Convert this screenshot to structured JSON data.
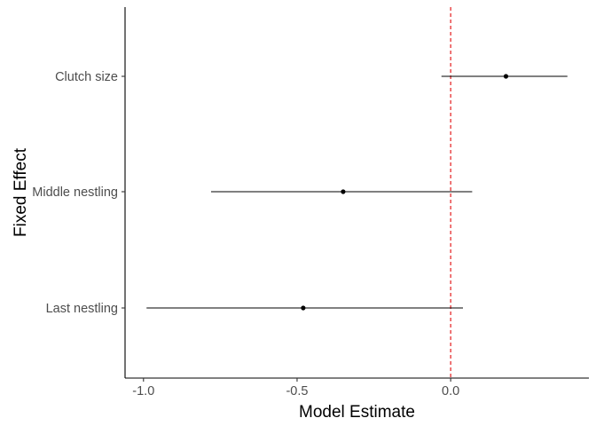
{
  "chart_data": {
    "type": "scatter",
    "subtype": "forest-plot",
    "title": "",
    "xlabel": "Model Estimate",
    "ylabel": "Fixed Effect",
    "xlim": [
      -1.06,
      0.45
    ],
    "x_ticks": [
      -1.0,
      -0.5,
      0.0
    ],
    "x_tick_labels": [
      "-1.0",
      "-0.5",
      "0.0"
    ],
    "categories": [
      "Clutch size",
      "Middle nestling",
      "Last nestling"
    ],
    "estimates": [
      {
        "label": "Clutch size",
        "estimate": 0.18,
        "lower": -0.03,
        "upper": 0.38
      },
      {
        "label": "Middle nestling",
        "estimate": -0.35,
        "lower": -0.78,
        "upper": 0.07
      },
      {
        "label": "Last nestling",
        "estimate": -0.48,
        "lower": -0.99,
        "upper": 0.04
      }
    ],
    "reference_line": {
      "x": 0.0,
      "color": "#e41a1c",
      "style": "dashed"
    },
    "grid": false,
    "legend": "none"
  }
}
